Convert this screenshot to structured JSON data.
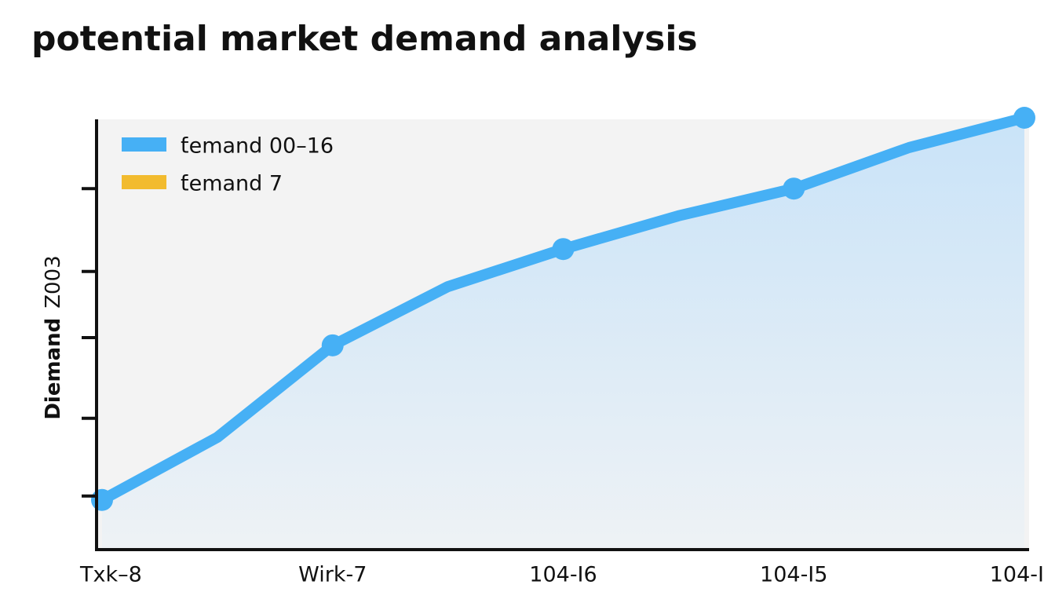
{
  "chart_data": {
    "type": "area-line",
    "title": "potential market demand analysis",
    "ylabel": "Diemand",
    "ylabel_suffix": "Z003",
    "categories": [
      "Txk–8",
      null,
      "Wirk-7",
      null,
      "104-I6",
      null,
      "104-I5",
      null,
      "104-I"
    ],
    "series": [
      {
        "name": "ƭemand 00–16",
        "color": "#46b0f5",
        "values": [
          11.5,
          26,
          47.3,
          60.9,
          69.6,
          77.3,
          83.6,
          93.1,
          100
        ]
      },
      {
        "name": "ƭemand 7",
        "color": "#f2bb2e",
        "values": [
          null,
          null,
          null,
          null,
          null,
          null,
          null,
          null,
          null
        ]
      }
    ],
    "ylim": [
      0,
      100
    ],
    "yticks": [
      12.4,
      30.4,
      49.1,
      64.4,
      83.6
    ],
    "legend": "upper left"
  }
}
